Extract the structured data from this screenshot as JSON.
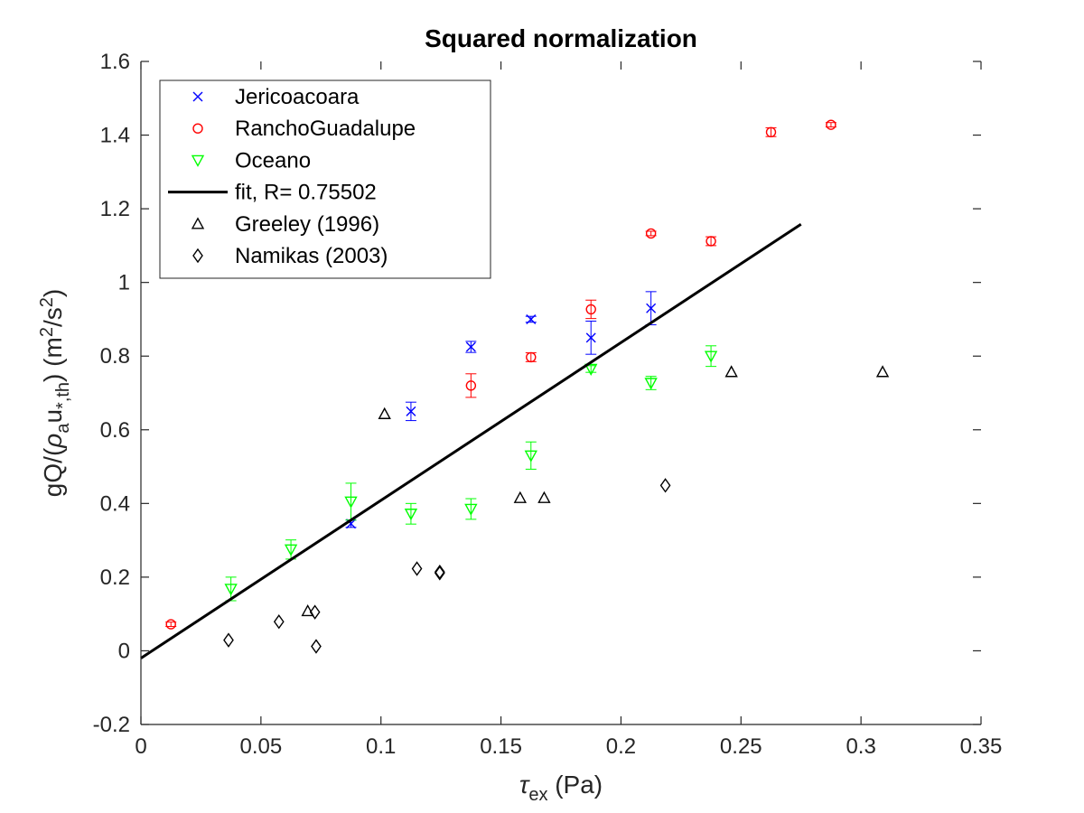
{
  "chart_data": {
    "type": "scatter",
    "title": "Squared normalization",
    "xlabel": {
      "sym": "τ",
      "sub": "ex",
      "rest": " (Pa)"
    },
    "ylabel": {
      "p1": "gQ/(",
      "rho": "ρ",
      "sub_a": "a",
      "u": "u",
      "sub_th": "*,th",
      "p2": ") (m",
      "sup1": "2",
      "p3": "/s",
      "sup2": "2",
      "p4": ")"
    },
    "xlim": [
      0,
      0.35
    ],
    "ylim": [
      -0.2,
      1.6
    ],
    "xticks": [
      0,
      0.05,
      0.1,
      0.15,
      0.2,
      0.25,
      0.3,
      0.35
    ],
    "xtick_labels": [
      "0",
      "0.05",
      "0.1",
      "0.15",
      "0.2",
      "0.25",
      "0.3",
      "0.35"
    ],
    "yticks": [
      -0.2,
      0,
      0.2,
      0.4,
      0.6,
      0.8,
      1,
      1.2,
      1.4,
      1.6
    ],
    "ytick_labels": [
      "-0.2",
      "0",
      "0.2",
      "0.4",
      "0.6",
      "0.8",
      "1",
      "1.2",
      "1.4",
      "1.6"
    ],
    "grid": false,
    "legend_position": "top-left",
    "series": [
      {
        "name": "Jericoacoara",
        "marker": "x",
        "color": "#0000ff",
        "x": [
          0.0875,
          0.1125,
          0.1375,
          0.1625,
          0.1875,
          0.2125
        ],
        "y": [
          0.345,
          0.65,
          0.825,
          0.9,
          0.85,
          0.93
        ],
        "err": [
          0.01,
          0.025,
          0.015,
          0.008,
          0.045,
          0.045
        ]
      },
      {
        "name": "RanchoGuadalupe",
        "marker": "o",
        "color": "#ff0000",
        "x": [
          0.0125,
          0.1375,
          0.1625,
          0.1875,
          0.2125,
          0.2375,
          0.2625,
          0.2875
        ],
        "y": [
          0.072,
          0.72,
          0.797,
          0.927,
          1.133,
          1.112,
          1.408,
          1.428
        ],
        "err": [
          0.006,
          0.032,
          0.012,
          0.025,
          0.006,
          0.012,
          0.012,
          0.006
        ]
      },
      {
        "name": "Oceano",
        "marker": "v",
        "color": "#00ff00",
        "x": [
          0.0375,
          0.0625,
          0.0875,
          0.1125,
          0.1375,
          0.1625,
          0.1875,
          0.2125,
          0.2375
        ],
        "y": [
          0.168,
          0.275,
          0.405,
          0.372,
          0.385,
          0.53,
          0.765,
          0.727,
          0.8
        ],
        "err": [
          0.032,
          0.026,
          0.05,
          0.028,
          0.028,
          0.037,
          0.009,
          0.018,
          0.028
        ]
      },
      {
        "name": "fit, R= 0.75502",
        "type": "line",
        "color": "#000000",
        "x": [
          0,
          0.275
        ],
        "y": [
          -0.02,
          1.158
        ]
      },
      {
        "name": "Greeley (1996)",
        "marker": "^",
        "color": "#000000",
        "x": [
          0.0695,
          0.1015,
          0.158,
          0.168,
          0.246,
          0.309
        ],
        "y": [
          0.108,
          0.643,
          0.415,
          0.415,
          0.757,
          0.757
        ]
      },
      {
        "name": "Namikas (2003)",
        "marker": "d",
        "color": "#000000",
        "x": [
          0.0365,
          0.0575,
          0.0725,
          0.073,
          0.115,
          0.1245,
          0.1245,
          0.2185
        ],
        "y": [
          0.029,
          0.079,
          0.105,
          0.012,
          0.223,
          0.211,
          0.214,
          0.449
        ]
      }
    ]
  }
}
